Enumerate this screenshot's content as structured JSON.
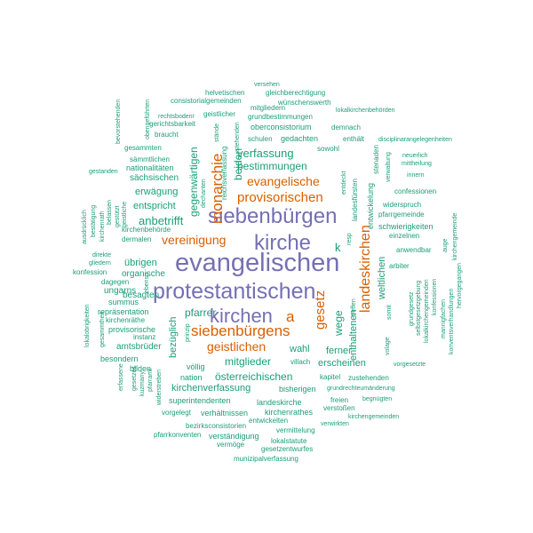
{
  "colors": {
    "teal": "#1b9e77",
    "orange": "#d95f02",
    "purple": "#7570b3"
  },
  "words": [
    {
      "text": "evangelischen",
      "color": "purple",
      "vertical": false
    },
    {
      "text": "protestantischen",
      "color": "purple",
      "vertical": false
    },
    {
      "text": "kirche",
      "color": "purple",
      "vertical": false
    },
    {
      "text": "siebenbürgen",
      "color": "purple",
      "vertical": false
    },
    {
      "text": "kirchen",
      "color": "purple",
      "vertical": false
    },
    {
      "text": "siebenbürgens",
      "color": "orange",
      "vertical": false
    },
    {
      "text": "monarchie",
      "color": "orange",
      "vertical": true
    },
    {
      "text": "landeskirchen",
      "color": "orange",
      "vertical": true
    },
    {
      "text": "provisorischen",
      "color": "orange",
      "vertical": false
    },
    {
      "text": "evangelische",
      "color": "orange",
      "vertical": false
    },
    {
      "text": "vereinigung",
      "color": "orange",
      "vertical": false
    },
    {
      "text": "geistlichen",
      "color": "orange",
      "vertical": false
    },
    {
      "text": "gesetz",
      "color": "orange",
      "vertical": true
    },
    {
      "text": "a",
      "color": "orange",
      "vertical": false
    },
    {
      "text": "verfassung",
      "color": "teal",
      "vertical": false
    },
    {
      "text": "bestimmungen",
      "color": "teal",
      "vertical": false
    },
    {
      "text": "mitglieder",
      "color": "teal",
      "vertical": false
    },
    {
      "text": "österreichischen",
      "color": "teal",
      "vertical": false
    },
    {
      "text": "kirchenverfassung",
      "color": "teal",
      "vertical": false
    },
    {
      "text": "anbetrifft",
      "color": "teal",
      "vertical": false
    },
    {
      "text": "entspricht",
      "color": "teal",
      "vertical": false
    },
    {
      "text": "erwägung",
      "color": "teal",
      "vertical": false
    },
    {
      "text": "sächsischen",
      "color": "teal",
      "vertical": false
    },
    {
      "text": "nationalitäten",
      "color": "teal",
      "vertical": false
    },
    {
      "text": "übrigen",
      "color": "teal",
      "vertical": false
    },
    {
      "text": "besagten",
      "color": "teal",
      "vertical": false
    },
    {
      "text": "pfarrer",
      "color": "teal",
      "vertical": false
    },
    {
      "text": "wahl",
      "color": "teal",
      "vertical": false
    },
    {
      "text": "erscheinen",
      "color": "teal",
      "vertical": false
    },
    {
      "text": "k",
      "color": "teal",
      "vertical": false
    },
    {
      "text": "gegenwärtigen",
      "color": "teal",
      "vertical": true
    },
    {
      "text": "beiden",
      "color": "teal",
      "vertical": true
    },
    {
      "text": "wege",
      "color": "teal",
      "vertical": true
    },
    {
      "text": "enthaltenen",
      "color": "teal",
      "vertical": true
    },
    {
      "text": "weltlichen",
      "color": "teal",
      "vertical": true
    },
    {
      "text": "bezüglich",
      "color": "teal",
      "vertical": true
    },
    {
      "text": "ferner",
      "color": "teal",
      "vertical": false
    },
    {
      "text": "entwickelung",
      "color": "teal",
      "vertical": true
    },
    {
      "text": "schwierigkeiten",
      "color": "teal",
      "vertical": false
    },
    {
      "text": "anwendbar",
      "color": "teal",
      "vertical": false
    },
    {
      "text": "konfession",
      "color": "teal",
      "vertical": false
    },
    {
      "text": "organische",
      "color": "teal",
      "vertical": false
    },
    {
      "text": "ungarns",
      "color": "teal",
      "vertical": false
    },
    {
      "text": "summus",
      "color": "teal",
      "vertical": false
    },
    {
      "text": "repräsentation",
      "color": "teal",
      "vertical": false
    },
    {
      "text": "provisorische",
      "color": "teal",
      "vertical": false
    },
    {
      "text": "instanz",
      "color": "teal",
      "vertical": false
    },
    {
      "text": "amtsbrüder",
      "color": "teal",
      "vertical": false
    },
    {
      "text": "besondern",
      "color": "teal",
      "vertical": false
    },
    {
      "text": "bilden",
      "color": "teal",
      "vertical": false
    },
    {
      "text": "nation",
      "color": "teal",
      "vertical": false
    },
    {
      "text": "völlig",
      "color": "teal",
      "vertical": false
    },
    {
      "text": "villach",
      "color": "teal",
      "vertical": false
    },
    {
      "text": "bisherigen",
      "color": "teal",
      "vertical": false
    },
    {
      "text": "superintendenten",
      "color": "teal",
      "vertical": false
    },
    {
      "text": "landeskirche",
      "color": "teal",
      "vertical": false
    },
    {
      "text": "verhältnissen",
      "color": "teal",
      "vertical": false
    },
    {
      "text": "kirchenrathes",
      "color": "teal",
      "vertical": false
    },
    {
      "text": "entwickelten",
      "color": "teal",
      "vertical": false
    },
    {
      "text": "vorgelegt",
      "color": "teal",
      "vertical": false
    },
    {
      "text": "bezirksconsistorien",
      "color": "teal",
      "vertical": false
    },
    {
      "text": "verständigung",
      "color": "teal",
      "vertical": false
    },
    {
      "text": "pfarrkonventen",
      "color": "teal",
      "vertical": false
    },
    {
      "text": "vermittelung",
      "color": "teal",
      "vertical": false
    },
    {
      "text": "lokalstatute",
      "color": "teal",
      "vertical": false
    },
    {
      "text": "vermöge",
      "color": "teal",
      "vertical": false
    },
    {
      "text": "gesetzentwurfes",
      "color": "teal",
      "vertical": false
    },
    {
      "text": "munizipalverfassung",
      "color": "teal",
      "vertical": false
    },
    {
      "text": "verwirkten",
      "color": "teal",
      "vertical": false
    },
    {
      "text": "verstoßen",
      "color": "teal",
      "vertical": false
    },
    {
      "text": "freien",
      "color": "teal",
      "vertical": false
    },
    {
      "text": "kapitel",
      "color": "teal",
      "vertical": false
    },
    {
      "text": "zustehenden",
      "color": "teal",
      "vertical": false
    },
    {
      "text": "grundrechteumänderung",
      "color": "teal",
      "vertical": false
    },
    {
      "text": "begnügten",
      "color": "teal",
      "vertical": false
    },
    {
      "text": "kirchengemeinden",
      "color": "teal",
      "vertical": false
    },
    {
      "text": "vorgesetzte",
      "color": "teal",
      "vertical": false
    },
    {
      "text": "volage",
      "color": "teal",
      "vertical": true
    },
    {
      "text": "versehen",
      "color": "teal",
      "vertical": false
    },
    {
      "text": "helvetischen",
      "color": "teal",
      "vertical": false
    },
    {
      "text": "gleichberechtigung",
      "color": "teal",
      "vertical": false
    },
    {
      "text": "consistorialgemeinden",
      "color": "teal",
      "vertical": false
    },
    {
      "text": "mitgliedern",
      "color": "teal",
      "vertical": false
    },
    {
      "text": "wünschenswerth",
      "color": "teal",
      "vertical": false
    },
    {
      "text": "lokalkirchenbehörden",
      "color": "teal",
      "vertical": false
    },
    {
      "text": "rechtsbodenr",
      "color": "teal",
      "vertical": false
    },
    {
      "text": "geistlicher",
      "color": "teal",
      "vertical": false
    },
    {
      "text": "grundbestimmungen",
      "color": "teal",
      "vertical": false
    },
    {
      "text": "gerichtsbarkeit",
      "color": "teal",
      "vertical": false
    },
    {
      "text": "oberconsistorium",
      "color": "teal",
      "vertical": false
    },
    {
      "text": "demnach",
      "color": "teal",
      "vertical": false
    },
    {
      "text": "braucht",
      "color": "teal",
      "vertical": false
    },
    {
      "text": "schulen",
      "color": "teal",
      "vertical": false
    },
    {
      "text": "gedachten",
      "color": "teal",
      "vertical": false
    },
    {
      "text": "enthält",
      "color": "teal",
      "vertical": false
    },
    {
      "text": "disciplinarangelegenheiten",
      "color": "teal",
      "vertical": false
    },
    {
      "text": "sowohl",
      "color": "teal",
      "vertical": false
    },
    {
      "text": "gesammten",
      "color": "teal",
      "vertical": false
    },
    {
      "text": "sämmtlichen",
      "color": "teal",
      "vertical": false
    },
    {
      "text": "neuerlich",
      "color": "teal",
      "vertical": false
    },
    {
      "text": "mittheilung",
      "color": "teal",
      "vertical": false
    },
    {
      "text": "innern",
      "color": "teal",
      "vertical": false
    },
    {
      "text": "gestanden",
      "color": "teal",
      "vertical": false
    },
    {
      "text": "confessionen",
      "color": "teal",
      "vertical": false
    },
    {
      "text": "widerspruch",
      "color": "teal",
      "vertical": false
    },
    {
      "text": "pfarrgemeinde",
      "color": "teal",
      "vertical": false
    },
    {
      "text": "einzelnen",
      "color": "teal",
      "vertical": false
    },
    {
      "text": "kirchenbehörde",
      "color": "teal",
      "vertical": false
    },
    {
      "text": "dermalen",
      "color": "teal",
      "vertical": false
    },
    {
      "text": "gliedern",
      "color": "teal",
      "vertical": false
    },
    {
      "text": "direkte",
      "color": "teal",
      "vertical": false
    },
    {
      "text": "dagegen",
      "color": "teal",
      "vertical": false
    },
    {
      "text": "kirchenräthe",
      "color": "teal",
      "vertical": false
    },
    {
      "text": "arbiter",
      "color": "teal",
      "vertical": false
    },
    {
      "text": "kirchengemeinde",
      "color": "teal",
      "vertical": true
    },
    {
      "text": "konventsverhandlungen",
      "color": "teal",
      "vertical": true
    },
    {
      "text": "hervorgegangen",
      "color": "teal",
      "vertical": true
    },
    {
      "text": "bevorstehenden",
      "color": "teal",
      "vertical": true
    },
    {
      "text": "obengeführten",
      "color": "teal",
      "vertical": true
    },
    {
      "text": "reichsverfassung",
      "color": "teal",
      "vertical": true
    },
    {
      "text": "stehenden",
      "color": "teal",
      "vertical": true
    },
    {
      "text": "dechanten",
      "color": "teal",
      "vertical": true
    },
    {
      "text": "entdeckt",
      "color": "teal",
      "vertical": true
    },
    {
      "text": "landesfürsten",
      "color": "teal",
      "vertical": true
    },
    {
      "text": "stenaden",
      "color": "teal",
      "vertical": true
    },
    {
      "text": "verwaltung",
      "color": "teal",
      "vertical": true
    },
    {
      "text": "ausdrücklich",
      "color": "teal",
      "vertical": true
    },
    {
      "text": "bestätigung",
      "color": "teal",
      "vertical": true
    },
    {
      "text": "kirchenrath",
      "color": "teal",
      "vertical": true
    },
    {
      "text": "belassen",
      "color": "teal",
      "vertical": true
    },
    {
      "text": "gestützt",
      "color": "teal",
      "vertical": true
    },
    {
      "text": "lokalobrigkeiten",
      "color": "teal",
      "vertical": true
    },
    {
      "text": "gesammtheit",
      "color": "teal",
      "vertical": true
    },
    {
      "text": "erfassene",
      "color": "teal",
      "vertical": true
    },
    {
      "text": "gesetzes",
      "color": "teal",
      "vertical": true
    },
    {
      "text": "kuzmany",
      "color": "teal",
      "vertical": true
    },
    {
      "text": "pfarramt",
      "color": "teal",
      "vertical": true
    },
    {
      "text": "widerstreben",
      "color": "teal",
      "vertical": true
    },
    {
      "text": "prinzip",
      "color": "teal",
      "vertical": true
    },
    {
      "text": "geistliche",
      "color": "teal",
      "vertical": true
    },
    {
      "text": "stände",
      "color": "teal",
      "vertical": true
    },
    {
      "text": "resp",
      "color": "teal",
      "vertical": true
    },
    {
      "text": "treffen",
      "color": "teal",
      "vertical": true
    },
    {
      "text": "grundgesetz",
      "color": "teal",
      "vertical": true
    },
    {
      "text": "selbstgesetzgebung",
      "color": "teal",
      "vertical": true
    },
    {
      "text": "lokalkirchengemeinden",
      "color": "teal",
      "vertical": true
    },
    {
      "text": "konfessionen",
      "color": "teal",
      "vertical": true
    },
    {
      "text": "mannigfachen",
      "color": "teal",
      "vertical": true
    },
    {
      "text": "auge",
      "color": "teal",
      "vertical": true
    },
    {
      "text": "somit",
      "color": "teal",
      "vertical": true
    },
    {
      "text": "ebenso",
      "color": "teal",
      "vertical": true
    }
  ]
}
